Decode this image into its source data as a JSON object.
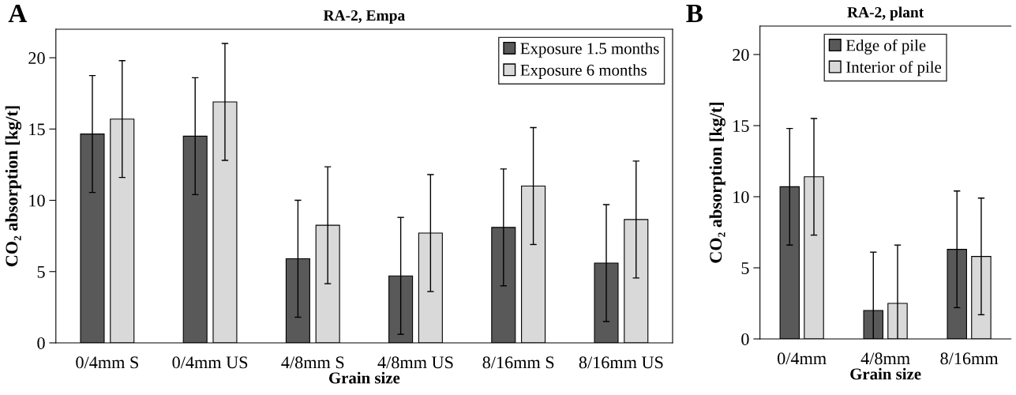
{
  "chart_data": [
    {
      "type": "bar",
      "title": "RA-2, Empa",
      "xlabel": "Grain size",
      "ylabel": "CO₂ absorption [kg/t]",
      "annotations": [
        "A"
      ],
      "categories": [
        "0/4mm S",
        "0/4mm US",
        "4/8mm S",
        "4/8mm US",
        "8/16mm S",
        "8/16mm US"
      ],
      "series": [
        {
          "name": "Exposure 1.5 months",
          "color": "#595959",
          "values": [
            14.65,
            14.5,
            5.9,
            4.7,
            8.1,
            5.6
          ],
          "errors": [
            4.1,
            4.1,
            4.1,
            4.1,
            4.1,
            4.1
          ]
        },
        {
          "name": "Exposure 6 months",
          "color": "#d9d9d9",
          "values": [
            15.7,
            16.9,
            8.25,
            7.7,
            11.0,
            8.65
          ],
          "errors": [
            4.1,
            4.1,
            4.1,
            4.1,
            4.1,
            4.1
          ]
        }
      ],
      "ylim": [
        0,
        22
      ],
      "yticks": [
        0,
        5,
        10,
        15,
        20
      ],
      "grid": false,
      "legend": "top right"
    },
    {
      "type": "bar",
      "title": "RA-2, plant",
      "xlabel": "Grain size",
      "ylabel": "CO₂ absorption [kg/t]",
      "annotations": [
        "B"
      ],
      "categories": [
        "0/4mm",
        "4/8mm",
        "8/16mm"
      ],
      "series": [
        {
          "name": "Edge of pile",
          "color": "#595959",
          "values": [
            10.7,
            2.0,
            6.3
          ],
          "errors": [
            4.1,
            4.1,
            4.1
          ]
        },
        {
          "name": "Interior of pile",
          "color": "#d9d9d9",
          "values": [
            11.4,
            2.5,
            5.8
          ],
          "errors": [
            4.1,
            4.1,
            4.1
          ]
        }
      ],
      "ylim": [
        0,
        22
      ],
      "yticks": [
        0,
        5,
        10,
        15,
        20
      ],
      "grid": false,
      "legend": "top"
    }
  ]
}
